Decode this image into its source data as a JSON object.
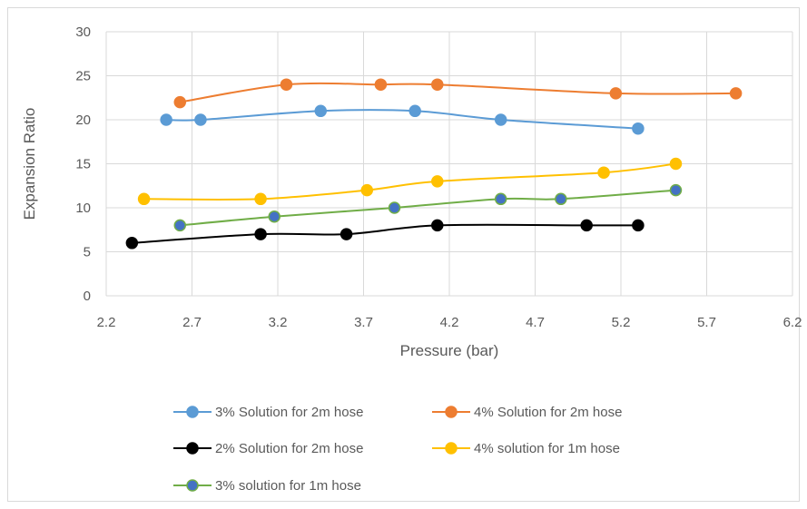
{
  "chart_data": {
    "type": "scatter",
    "title": "",
    "xlabel": "Pressure (bar)",
    "ylabel": "Expansion Ratio",
    "xlim": [
      2.2,
      6.2
    ],
    "ylim": [
      0,
      30
    ],
    "xticks": [
      "2.2",
      "2.7",
      "3.2",
      "3.7",
      "4.2",
      "4.7",
      "5.2",
      "5.7",
      "6.2"
    ],
    "yticks": [
      "0",
      "5",
      "10",
      "15",
      "20",
      "25",
      "30"
    ],
    "grid": "horizontal and vertical",
    "smooth_lines": true,
    "legend_position": "bottom",
    "series": [
      {
        "name": "3% Solution for 2m hose",
        "color": "#5b9bd5",
        "marker_fill": "#5b9bd5",
        "x": [
          2.55,
          2.75,
          3.45,
          4.0,
          4.5,
          5.3
        ],
        "y": [
          20,
          20,
          21,
          21,
          20,
          19
        ]
      },
      {
        "name": "4% Solution for 2m hose",
        "color": "#ed7d31",
        "marker_fill": "#ed7d31",
        "x": [
          2.63,
          3.25,
          3.8,
          4.13,
          5.17,
          5.87
        ],
        "y": [
          22,
          24,
          24,
          24,
          23,
          23
        ]
      },
      {
        "name": "2% Solution for 2m hose",
        "color": "#000000",
        "marker_fill": "#000000",
        "x": [
          2.35,
          3.1,
          3.6,
          4.13,
          5.0,
          5.3
        ],
        "y": [
          6,
          7,
          7,
          8,
          8,
          8
        ]
      },
      {
        "name": "4% solution for 1m hose",
        "color": "#ffc000",
        "marker_fill": "#ffc000",
        "x": [
          2.42,
          3.1,
          3.72,
          4.13,
          5.1,
          5.52
        ],
        "y": [
          11,
          11,
          12,
          13,
          14,
          15
        ]
      },
      {
        "name": "3% solution for 1m hose",
        "color": "#70ad47",
        "marker_fill": "#4472c4",
        "x": [
          2.63,
          3.18,
          3.88,
          4.5,
          4.85,
          5.52
        ],
        "y": [
          8,
          9,
          10,
          11,
          11,
          12
        ]
      }
    ]
  }
}
